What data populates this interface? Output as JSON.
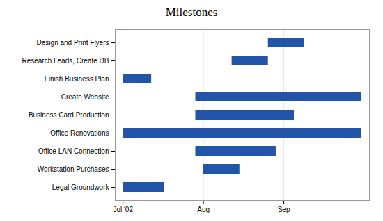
{
  "chart_data": {
    "type": "gantt",
    "title": "Milestones",
    "orientation": "horizontal",
    "categories": [
      "Legal Groundwork",
      "Workstation Purchases",
      "Office LAN Connection",
      "Office Renovations",
      "Business Card Production",
      "Create Website",
      "Finish Business Plan",
      "Research Leads, Create DB",
      "Design and Print Flyers"
    ],
    "start": [
      0,
      31,
      28,
      0,
      28,
      28,
      0,
      42,
      56
    ],
    "end": [
      16,
      45,
      59,
      92,
      66,
      92,
      11,
      56,
      70
    ],
    "color": "#2255AA",
    "xlim": [
      -3,
      95
    ],
    "xticks": [
      {
        "value": 0,
        "label": "Jul '02"
      },
      {
        "value": 31,
        "label": "Aug"
      },
      {
        "value": 62,
        "label": "Sep"
      }
    ],
    "grid": true
  }
}
